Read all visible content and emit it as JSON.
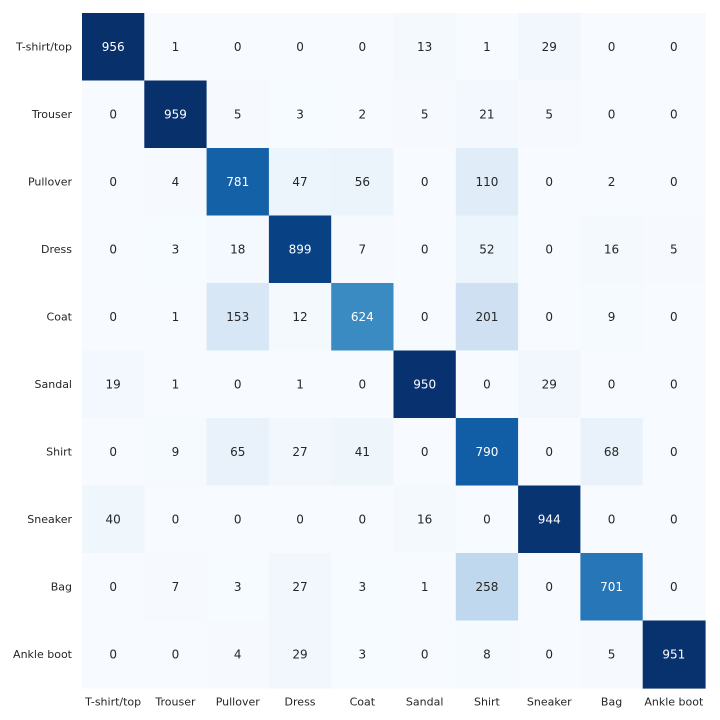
{
  "chart_data": {
    "type": "heatmap",
    "title": "",
    "xlabel": "",
    "ylabel": "",
    "colormap": "Blues",
    "colorbar": false,
    "value_range": [
      0,
      959
    ],
    "row_labels": [
      "T-shirt/top",
      "Trouser",
      "Pullover",
      "Dress",
      "Coat",
      "Sandal",
      "Shirt",
      "Sneaker",
      "Bag",
      "Ankle boot"
    ],
    "col_labels": [
      "T-shirt/top",
      "Trouser",
      "Pullover",
      "Dress",
      "Coat",
      "Sandal",
      "Shirt",
      "Sneaker",
      "Bag",
      "Ankle boot"
    ],
    "values": [
      [
        956,
        1,
        0,
        0,
        0,
        13,
        1,
        29,
        0,
        0
      ],
      [
        0,
        959,
        5,
        3,
        2,
        5,
        21,
        5,
        0,
        0
      ],
      [
        0,
        4,
        781,
        47,
        56,
        0,
        110,
        0,
        2,
        0
      ],
      [
        0,
        3,
        18,
        899,
        7,
        0,
        52,
        0,
        16,
        5
      ],
      [
        0,
        1,
        153,
        12,
        624,
        0,
        201,
        0,
        9,
        0
      ],
      [
        19,
        1,
        0,
        1,
        0,
        950,
        0,
        29,
        0,
        0
      ],
      [
        0,
        9,
        65,
        27,
        41,
        0,
        790,
        0,
        68,
        0
      ],
      [
        40,
        0,
        0,
        0,
        0,
        16,
        0,
        944,
        0,
        0
      ],
      [
        0,
        7,
        3,
        27,
        3,
        1,
        258,
        0,
        701,
        0
      ],
      [
        0,
        0,
        4,
        29,
        3,
        0,
        8,
        0,
        5,
        951
      ]
    ]
  }
}
